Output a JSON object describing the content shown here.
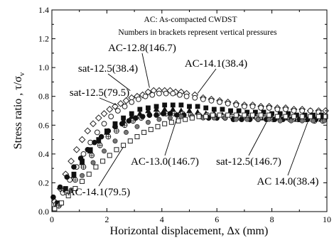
{
  "chart_data": {
    "type": "scatter",
    "xlabel": "Horizontal displacement, Δx (mm)",
    "ylabel": "Stress ratio , τ/σv",
    "ylabel_main": "Stress ratio , τ/σ",
    "ylabel_sub": "v",
    "xlim": [
      0,
      10
    ],
    "ylim": [
      0,
      1.4
    ],
    "xticks": [
      0,
      2,
      4,
      6,
      8,
      10
    ],
    "yticks": [
      0.0,
      0.2,
      0.4,
      0.6,
      0.8,
      1.0,
      1.2,
      1.4
    ],
    "xtick_labels": [
      "0",
      "2",
      "4",
      "6",
      "8",
      "10"
    ],
    "ytick_labels": [
      "0.0",
      "0.2",
      "0.4",
      "0.6",
      "0.8",
      "1.0",
      "1.2",
      "1.4"
    ],
    "grid": false,
    "notes": [
      "AC: As-compacted CWDST",
      "Numbers in brackets represent vertical pressures"
    ],
    "annotations": [
      {
        "text": "AC-12.8(146.7)",
        "x": 3.55,
        "y": 0.86
      },
      {
        "text": "AC-14.1(38.4)",
        "x": 5.3,
        "y": 0.82
      },
      {
        "text": "sat-12.5(38.4)",
        "x": 2.85,
        "y": 0.84
      },
      {
        "text": "sat-12.5(79.5)",
        "x": 2.35,
        "y": 0.74
      },
      {
        "text": "AC-13.0(146.7)",
        "x": 4.55,
        "y": 0.65
      },
      {
        "text": "sat-12.5(146.7)",
        "x": 7.8,
        "y": 0.62
      },
      {
        "text": "AC 14.0(38.4)",
        "x": 9.3,
        "y": 0.62
      },
      {
        "text": "AC-14.1(79.5)",
        "x": 2.6,
        "y": 0.45
      }
    ],
    "series": [
      {
        "name": "AC-12.8(146.7)",
        "marker": "diamond-open",
        "x": [
          0.1,
          0.3,
          0.5,
          0.7,
          0.9,
          1.1,
          1.3,
          1.5,
          1.7,
          1.9,
          2.1,
          2.3,
          2.5,
          2.7,
          2.9,
          3.1,
          3.3,
          3.5,
          3.7,
          3.9,
          4.1,
          4.3,
          4.5,
          4.7,
          4.9,
          5.2,
          5.5,
          5.8,
          6.1,
          6.4,
          6.7,
          7.0,
          7.3,
          7.6,
          7.9,
          8.2,
          8.5,
          8.8,
          9.1,
          9.4,
          9.7,
          9.95
        ],
        "y": [
          0.07,
          0.16,
          0.26,
          0.35,
          0.43,
          0.5,
          0.56,
          0.61,
          0.65,
          0.68,
          0.71,
          0.73,
          0.75,
          0.77,
          0.79,
          0.8,
          0.81,
          0.83,
          0.84,
          0.84,
          0.84,
          0.84,
          0.83,
          0.83,
          0.82,
          0.81,
          0.79,
          0.78,
          0.77,
          0.76,
          0.75,
          0.74,
          0.74,
          0.73,
          0.73,
          0.72,
          0.72,
          0.71,
          0.71,
          0.7,
          0.7,
          0.7
        ]
      },
      {
        "name": "AC-14.1(38.4)",
        "marker": "circle-open",
        "x": [
          0.15,
          0.4,
          0.65,
          0.9,
          1.15,
          1.4,
          1.65,
          1.9,
          2.15,
          2.4,
          2.65,
          2.9,
          3.15,
          3.4,
          3.65,
          3.9,
          4.15,
          4.4,
          4.65,
          4.9,
          5.2,
          5.5,
          5.8,
          6.1,
          6.4,
          6.7,
          7.0,
          7.3,
          7.6,
          7.9,
          8.2,
          8.5,
          8.8,
          9.1,
          9.4,
          9.7
        ],
        "y": [
          0.05,
          0.13,
          0.22,
          0.31,
          0.4,
          0.48,
          0.55,
          0.61,
          0.66,
          0.7,
          0.73,
          0.76,
          0.78,
          0.8,
          0.81,
          0.82,
          0.82,
          0.82,
          0.81,
          0.8,
          0.79,
          0.78,
          0.77,
          0.76,
          0.75,
          0.74,
          0.73,
          0.73,
          0.72,
          0.72,
          0.71,
          0.71,
          0.7,
          0.7,
          0.7,
          0.69
        ]
      },
      {
        "name": "sat-12.5(38.4)",
        "marker": "square-filled",
        "x": [
          0.2,
          0.5,
          0.8,
          1.1,
          1.4,
          1.7,
          2.0,
          2.3,
          2.6,
          2.9,
          3.2,
          3.5,
          3.8,
          4.1,
          4.4,
          4.7,
          5.0,
          5.3,
          5.6,
          5.9,
          6.2,
          6.5,
          6.8,
          7.1,
          7.4,
          7.7,
          8.0,
          8.3,
          8.6,
          8.9,
          9.2,
          9.5,
          9.8
        ],
        "y": [
          0.06,
          0.16,
          0.26,
          0.35,
          0.43,
          0.5,
          0.56,
          0.61,
          0.65,
          0.68,
          0.71,
          0.72,
          0.73,
          0.74,
          0.74,
          0.74,
          0.73,
          0.73,
          0.72,
          0.71,
          0.71,
          0.7,
          0.7,
          0.69,
          0.69,
          0.69,
          0.68,
          0.68,
          0.68,
          0.67,
          0.67,
          0.67,
          0.67
        ]
      },
      {
        "name": "sat-12.5(79.5)",
        "marker": "triangle-filled",
        "x": [
          0.2,
          0.5,
          0.8,
          1.1,
          1.4,
          1.7,
          2.0,
          2.3,
          2.6,
          2.9,
          3.2,
          3.5,
          3.8,
          4.1,
          4.4,
          4.7,
          5.0,
          5.3,
          5.6,
          5.9,
          6.2,
          6.5,
          6.8,
          7.1,
          7.4,
          7.7,
          8.0,
          8.3,
          8.6,
          8.9,
          9.2,
          9.5,
          9.8
        ],
        "y": [
          0.05,
          0.15,
          0.25,
          0.34,
          0.42,
          0.49,
          0.55,
          0.6,
          0.63,
          0.66,
          0.68,
          0.7,
          0.71,
          0.71,
          0.71,
          0.7,
          0.7,
          0.69,
          0.68,
          0.68,
          0.67,
          0.67,
          0.66,
          0.66,
          0.66,
          0.65,
          0.65,
          0.65,
          0.65,
          0.64,
          0.64,
          0.64,
          0.64
        ]
      },
      {
        "name": "sat-12.5(146.7)",
        "marker": "circle-cross",
        "x": [
          0.25,
          0.55,
          0.85,
          1.15,
          1.45,
          1.75,
          2.05,
          2.35,
          2.65,
          2.95,
          3.25,
          3.55,
          3.85,
          4.15,
          4.45,
          4.75,
          5.05,
          5.35,
          5.65,
          5.95,
          6.25,
          6.55,
          6.85,
          7.15,
          7.45,
          7.75,
          8.05,
          8.35,
          8.65,
          8.95,
          9.25,
          9.55,
          9.85
        ],
        "y": [
          0.04,
          0.13,
          0.22,
          0.31,
          0.39,
          0.46,
          0.52,
          0.56,
          0.6,
          0.63,
          0.65,
          0.67,
          0.68,
          0.68,
          0.68,
          0.68,
          0.67,
          0.67,
          0.67,
          0.66,
          0.66,
          0.66,
          0.65,
          0.65,
          0.65,
          0.65,
          0.64,
          0.64,
          0.64,
          0.64,
          0.64,
          0.63,
          0.63
        ]
      },
      {
        "name": "AC-13.0(146.7)",
        "marker": "circle-filled",
        "x": [
          0.05,
          0.3,
          0.55,
          0.8,
          1.05,
          1.3,
          1.55,
          1.8,
          2.05,
          2.3,
          2.55,
          2.8,
          3.05,
          3.3,
          3.55,
          3.8,
          4.05,
          4.3,
          4.55,
          4.8,
          5.1,
          5.4,
          5.7,
          6.0,
          6.3,
          6.6,
          6.9,
          7.2,
          7.5,
          7.8,
          8.1,
          8.4,
          8.7,
          9.0,
          9.3,
          9.6,
          9.9
        ],
        "y": [
          0.1,
          0.17,
          0.24,
          0.31,
          0.37,
          0.43,
          0.48,
          0.52,
          0.56,
          0.59,
          0.61,
          0.63,
          0.65,
          0.66,
          0.67,
          0.67,
          0.68,
          0.68,
          0.67,
          0.67,
          0.66,
          0.66,
          0.65,
          0.65,
          0.65,
          0.64,
          0.64,
          0.64,
          0.64,
          0.64,
          0.64,
          0.64,
          0.64,
          0.64,
          0.64,
          0.64,
          0.64
        ]
      },
      {
        "name": "AC 14.0(38.4)",
        "marker": "circle-gray",
        "x": [
          0.3,
          0.7,
          1.1,
          1.5,
          1.9,
          2.3,
          2.7,
          3.1,
          3.5,
          3.9,
          4.3,
          4.7,
          5.1,
          5.5,
          5.9,
          6.3,
          6.7,
          7.1,
          7.5,
          7.9,
          8.3,
          8.7,
          9.1,
          9.5,
          9.9
        ],
        "y": [
          0.05,
          0.15,
          0.25,
          0.34,
          0.42,
          0.49,
          0.55,
          0.59,
          0.62,
          0.64,
          0.65,
          0.66,
          0.66,
          0.65,
          0.65,
          0.65,
          0.64,
          0.64,
          0.64,
          0.64,
          0.63,
          0.63,
          0.63,
          0.63,
          0.63
        ]
      },
      {
        "name": "AC-14.1(79.5)",
        "marker": "square-open",
        "x": [
          0.1,
          0.35,
          0.6,
          0.85,
          1.1,
          1.35,
          1.6,
          1.85,
          2.1,
          2.35,
          2.6,
          2.85,
          3.1,
          3.35,
          3.6,
          3.85,
          4.1,
          4.35,
          4.6,
          4.85,
          5.1,
          5.35,
          5.6,
          5.85,
          6.1,
          6.4,
          6.7,
          7.0,
          7.3,
          7.6,
          7.9,
          8.2,
          8.5,
          8.8,
          9.1,
          9.4,
          9.7,
          9.95
        ],
        "y": [
          0.02,
          0.06,
          0.11,
          0.16,
          0.21,
          0.26,
          0.31,
          0.35,
          0.39,
          0.43,
          0.46,
          0.49,
          0.52,
          0.55,
          0.57,
          0.59,
          0.61,
          0.62,
          0.63,
          0.64,
          0.65,
          0.66,
          0.66,
          0.67,
          0.67,
          0.67,
          0.67,
          0.67,
          0.67,
          0.67,
          0.67,
          0.66,
          0.66,
          0.66,
          0.66,
          0.66,
          0.66,
          0.66
        ]
      }
    ]
  }
}
